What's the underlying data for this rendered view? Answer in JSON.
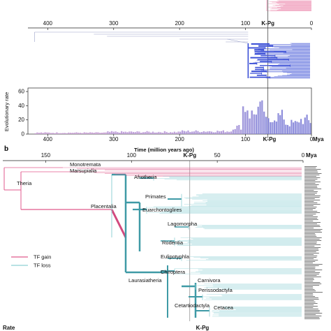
{
  "chart_data": [
    {
      "type": "tree",
      "panel": "",
      "x_axis": {
        "ticks": [
          400,
          300,
          200,
          100,
          0
        ],
        "marker": "K-Pg",
        "marker_value": 66,
        "range": [
          430,
          0
        ]
      },
      "colors": {
        "branch": "#3b4fd6",
        "stem": "#9aa0c8",
        "top_strip": "#e86b9a"
      }
    },
    {
      "type": "bar",
      "ylabel": "Evolutionary rate",
      "xlabel": "Time (million years ago)",
      "unit": "Mya",
      "y_ticks": [
        0,
        20,
        40,
        60
      ],
      "ylim": [
        0,
        65
      ],
      "x_ticks": [
        400,
        300,
        200,
        100,
        0
      ],
      "marker": "K-Pg",
      "marker_value": 66,
      "segments": [
        {
          "from": 420,
          "to": 310,
          "value": 2,
          "color": "#c89bd6"
        },
        {
          "from": 310,
          "to": 200,
          "value": 3,
          "color": "#b894d6"
        },
        {
          "from": 200,
          "to": 120,
          "value": 4,
          "color": "#a98ed6"
        },
        {
          "from": 120,
          "to": 105,
          "value": 10,
          "color": "#9b8ad6"
        },
        {
          "from": 105,
          "to": 95,
          "value": 38,
          "color": "#8f86d6"
        },
        {
          "from": 95,
          "to": 85,
          "value": 28,
          "color": "#8f86d6"
        },
        {
          "from": 85,
          "to": 70,
          "value": 35,
          "color": "#8480d6"
        },
        {
          "from": 70,
          "to": 60,
          "value": 18,
          "color": "#7a7ad6"
        },
        {
          "from": 60,
          "to": 40,
          "value": 25,
          "color": "#7a7ad6"
        },
        {
          "from": 40,
          "to": 20,
          "value": 15,
          "color": "#7a7ad6"
        },
        {
          "from": 20,
          "to": 5,
          "value": 20,
          "color": "#7a7ad6"
        },
        {
          "from": 5,
          "to": 0,
          "value": 18,
          "color": "#7a7ad6"
        }
      ]
    },
    {
      "type": "tree",
      "panel": "b",
      "x_axis": {
        "ticks": [
          150,
          100,
          50,
          0
        ],
        "marker": "K-Pg",
        "marker_value": 66,
        "range": [
          175,
          0
        ],
        "unit": "Mya"
      },
      "clades": [
        "Monotremata",
        "Marsupialia",
        "Theria",
        "Afrotheria",
        "Primates",
        "Placentalia",
        "Euarchontoglires",
        "Lagomorpha",
        "Rodentia",
        "Eulipotyphla",
        "Chiroptera",
        "Laurasiatheria",
        "Carnivora",
        "Perissodactyla",
        "Cetartiodactyla",
        "Cetacea"
      ],
      "legend": [
        {
          "label": "TF gain",
          "color": "#e05a8c"
        },
        {
          "label": "TF loss",
          "color": "#8fd0d4"
        }
      ],
      "bottom_labels": {
        "left": "Rate",
        "center": "K-Pg"
      }
    }
  ]
}
